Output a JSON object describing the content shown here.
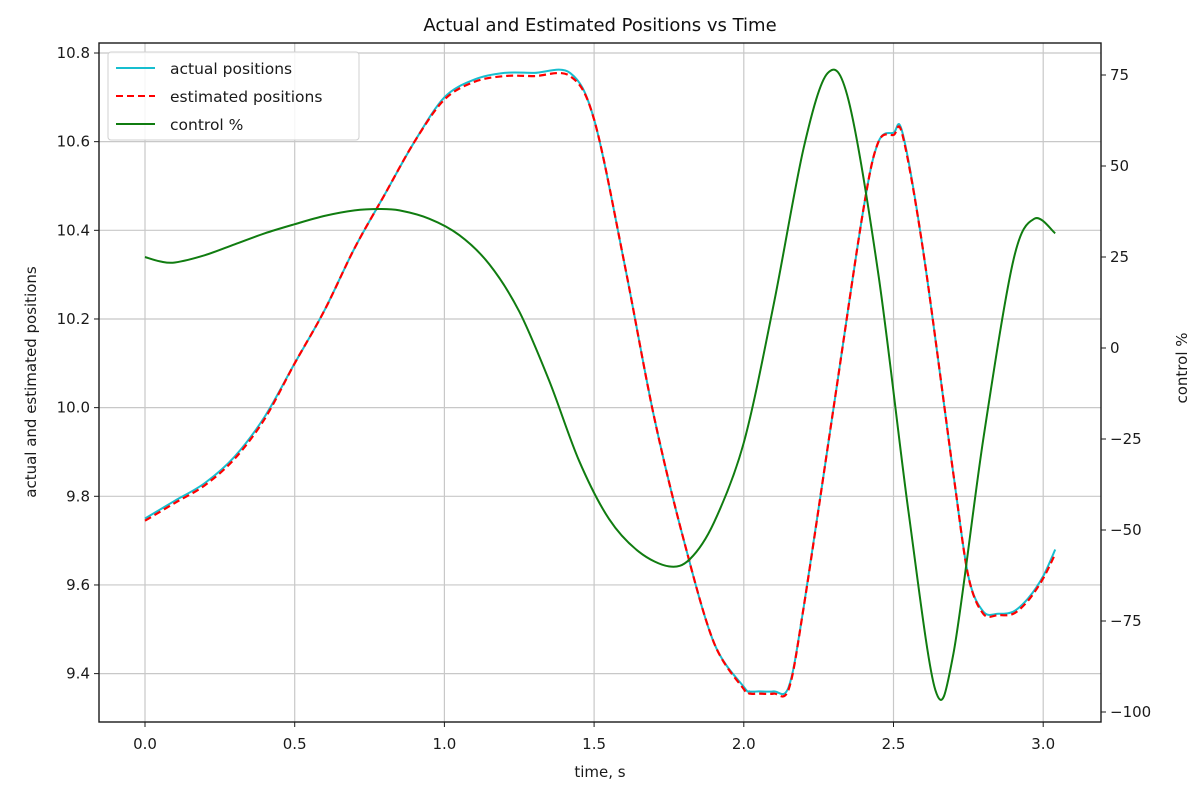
{
  "chart_data": {
    "type": "line",
    "title": "Actual and Estimated Positions vs Time",
    "xlabel": "time, s",
    "ylabel": "actual and estimated positions",
    "ylabel_right": "control %",
    "xlim": [
      -0.15,
      3.18
    ],
    "ylim": [
      9.29,
      10.82
    ],
    "ylim_right": [
      -103,
      83
    ],
    "grid": true,
    "legend_position": "upper left",
    "x_ticks": [
      "0.0",
      "0.5",
      "1.0",
      "1.5",
      "2.0",
      "2.5",
      "3.0"
    ],
    "x_tick_values": [
      0.0,
      0.5,
      1.0,
      1.5,
      2.0,
      2.5,
      3.0
    ],
    "y_ticks": [
      "9.4",
      "9.6",
      "9.8",
      "10.0",
      "10.2",
      "10.4",
      "10.6",
      "10.8"
    ],
    "y_tick_values": [
      9.4,
      9.6,
      9.8,
      10.0,
      10.2,
      10.4,
      10.6,
      10.8
    ],
    "y_ticks_right": [
      "−100",
      "−75",
      "−50",
      "−25",
      "0",
      "25",
      "50",
      "75"
    ],
    "y_tick_values_right": [
      -100,
      -75,
      -50,
      -25,
      0,
      25,
      50,
      75
    ],
    "legend": [
      "actual positions",
      "estimated positions",
      "control %"
    ],
    "series": [
      {
        "name": "actual positions",
        "axis": "left",
        "color": "#17becf",
        "style": "solid",
        "x": [
          0.0,
          0.1,
          0.2,
          0.3,
          0.4,
          0.5,
          0.6,
          0.7,
          0.8,
          0.9,
          1.0,
          1.1,
          1.2,
          1.3,
          1.42,
          1.5,
          1.6,
          1.7,
          1.8,
          1.9,
          2.0,
          2.02,
          2.05,
          2.1,
          2.15,
          2.2,
          2.3,
          2.4,
          2.45,
          2.5,
          2.53,
          2.6,
          2.7,
          2.75,
          2.8,
          2.85,
          2.9,
          2.95,
          3.0,
          3.04
        ],
        "y": [
          9.75,
          9.79,
          9.83,
          9.89,
          9.98,
          10.1,
          10.22,
          10.36,
          10.48,
          10.6,
          10.7,
          10.74,
          10.755,
          10.755,
          10.755,
          10.65,
          10.33,
          9.98,
          9.7,
          9.47,
          9.37,
          9.36,
          9.36,
          9.36,
          9.37,
          9.55,
          10.0,
          10.45,
          10.6,
          10.62,
          10.62,
          10.35,
          9.85,
          9.62,
          9.54,
          9.535,
          9.54,
          9.57,
          9.62,
          9.68
        ]
      },
      {
        "name": "estimated positions",
        "axis": "left",
        "color": "#ff0000",
        "style": "dashed",
        "x": [
          0.0,
          0.1,
          0.2,
          0.3,
          0.4,
          0.5,
          0.6,
          0.7,
          0.8,
          0.9,
          1.0,
          1.1,
          1.2,
          1.3,
          1.42,
          1.5,
          1.6,
          1.7,
          1.8,
          1.9,
          2.0,
          2.02,
          2.05,
          2.1,
          2.15,
          2.2,
          2.3,
          2.4,
          2.45,
          2.5,
          2.53,
          2.6,
          2.7,
          2.75,
          2.8,
          2.85,
          2.9,
          2.95,
          3.0,
          3.04
        ],
        "y": [
          9.745,
          9.785,
          9.825,
          9.885,
          9.975,
          10.1,
          10.22,
          10.36,
          10.48,
          10.6,
          10.695,
          10.735,
          10.748,
          10.748,
          10.748,
          10.65,
          10.33,
          9.98,
          9.7,
          9.47,
          9.365,
          9.355,
          9.355,
          9.355,
          9.365,
          9.55,
          10.0,
          10.45,
          10.6,
          10.615,
          10.615,
          10.35,
          9.85,
          9.62,
          9.535,
          9.532,
          9.535,
          9.565,
          9.615,
          9.67
        ]
      },
      {
        "name": "control %",
        "axis": "right",
        "color": "#107c10",
        "style": "solid",
        "x": [
          0.0,
          0.05,
          0.1,
          0.2,
          0.3,
          0.4,
          0.5,
          0.6,
          0.7,
          0.78,
          0.85,
          0.95,
          1.05,
          1.15,
          1.25,
          1.35,
          1.45,
          1.55,
          1.65,
          1.75,
          1.82,
          1.9,
          2.0,
          2.1,
          2.2,
          2.28,
          2.35,
          2.45,
          2.55,
          2.64,
          2.7,
          2.8,
          2.9,
          2.97,
          3.04
        ],
        "y": [
          25.0,
          23.8,
          23.5,
          25.5,
          28.5,
          31.5,
          34.0,
          36.3,
          37.8,
          38.2,
          37.8,
          35.5,
          31.0,
          23.0,
          10.0,
          -9.0,
          -31.0,
          -47.0,
          -56.0,
          -60.0,
          -58.0,
          -48.0,
          -26.0,
          12.0,
          55.0,
          75.5,
          68.0,
          20.0,
          -45.0,
          -94.0,
          -84.0,
          -25.0,
          24.0,
          35.5,
          31.5
        ]
      }
    ]
  }
}
